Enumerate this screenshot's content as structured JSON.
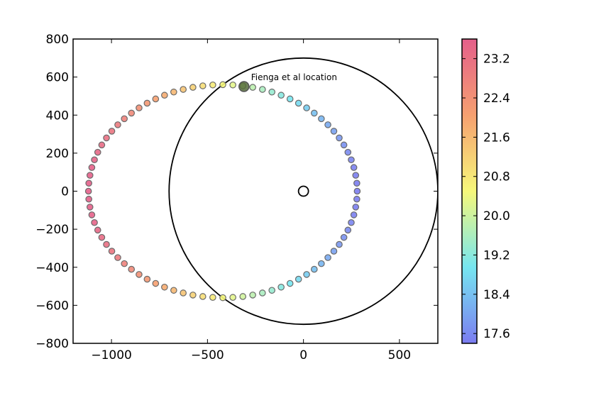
{
  "chart_data": {
    "type": "scatter",
    "title": "",
    "xlabel": "",
    "ylabel": "",
    "xlim": [
      -1200,
      700
    ],
    "ylim": [
      -800,
      800
    ],
    "x_ticks": [
      -1000,
      -500,
      0,
      500
    ],
    "y_ticks": [
      -800,
      -600,
      -400,
      -200,
      0,
      200,
      400,
      600,
      800
    ],
    "x_tick_labels": [
      "−1000",
      "−500",
      "0",
      "500"
    ],
    "y_tick_labels": [
      "−800",
      "−600",
      "−400",
      "−200",
      "0",
      "200",
      "400",
      "600",
      "800"
    ],
    "grid": false,
    "orbit": {
      "semi_major": 700,
      "semi_minor": 560,
      "center_x": -420,
      "center_y": 0,
      "n_points": 84,
      "value_min": 17.4,
      "value_max": 23.6
    },
    "reference_circle": {
      "cx": 0,
      "cy": 0,
      "r": 700
    },
    "center_marker": {
      "x": 0,
      "y": 0
    },
    "highlight": {
      "x": -310,
      "y": 550,
      "label": "Fienga et al location"
    },
    "colorbar": {
      "range": [
        17.4,
        23.6
      ],
      "ticks": [
        17.6,
        18.4,
        19.2,
        20.0,
        20.8,
        21.6,
        22.4,
        23.2
      ],
      "tick_labels": [
        "17.6",
        "18.4",
        "19.2",
        "20.0",
        "20.8",
        "21.6",
        "22.4",
        "23.2"
      ]
    }
  }
}
